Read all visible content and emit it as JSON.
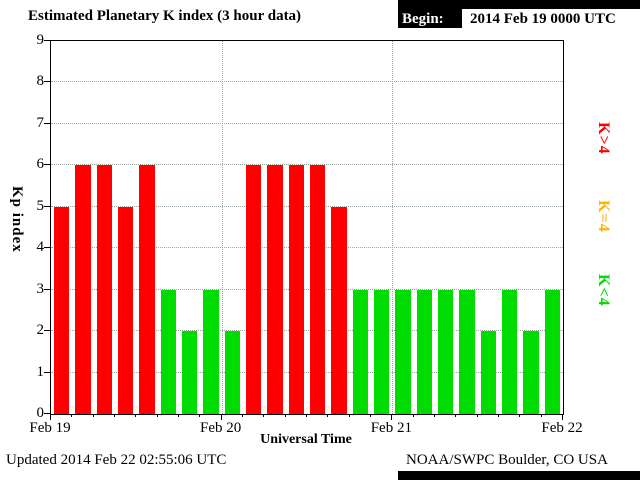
{
  "title": "Estimated Planetary K index (3 hour data)",
  "begin": {
    "label": "Begin:",
    "value": "2014 Feb 19 0000 UTC"
  },
  "footer": {
    "updated": "Updated 2014 Feb 22 02:55:06 UTC",
    "source": "NOAA/SWPC Boulder, CO USA"
  },
  "chart_data": {
    "type": "bar",
    "title": "Estimated Planetary K index (3 hour data)",
    "begin_time": "2014 Feb 19 0000 UTC",
    "xlabel": "Universal Time",
    "ylabel": "Kp index",
    "ylim": [
      0,
      9
    ],
    "y_ticks": [
      0,
      1,
      2,
      3,
      4,
      5,
      6,
      7,
      8,
      9
    ],
    "x_ticks": [
      "Feb 19",
      "Feb 20",
      "Feb 21",
      "Feb 22"
    ],
    "bar_interval_hours": 3,
    "values": [
      5,
      6,
      6,
      5,
      6,
      3,
      2,
      3,
      2,
      6,
      6,
      6,
      6,
      5,
      3,
      3,
      3,
      3,
      3,
      3,
      2,
      3,
      2,
      3
    ],
    "grid": "dotted",
    "color_rules": [
      {
        "label": "K>4",
        "color": "#ff0000",
        "rule": "gt4"
      },
      {
        "label": "K=4",
        "color": "#ffb400",
        "rule": "eq4"
      },
      {
        "label": "K<4",
        "color": "#00dc00",
        "rule": "lt4"
      }
    ],
    "legend_position": "right-rotated"
  }
}
